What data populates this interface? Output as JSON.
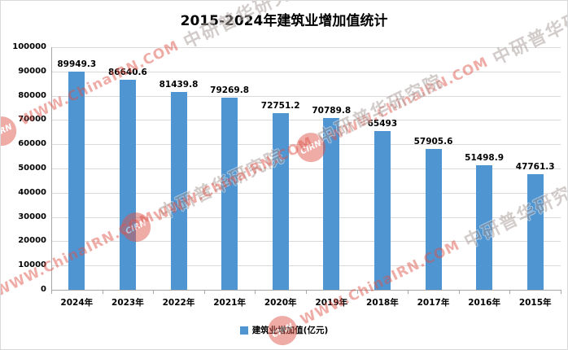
{
  "chart_data": {
    "type": "bar",
    "title": "2015-2024年建筑业增加值统计",
    "categories": [
      "2024年",
      "2023年",
      "2022年",
      "2021年",
      "2020年",
      "2019年",
      "2018年",
      "2017年",
      "2016年",
      "2015年"
    ],
    "values": [
      89949.3,
      86640.6,
      81439.8,
      79269.8,
      72751.2,
      70789.8,
      65493,
      57905.6,
      51498.9,
      47761.3
    ],
    "value_labels": [
      "89949.3",
      "86640.6",
      "81439.8",
      "79269.8",
      "72751.2",
      "70789.8",
      "65493",
      "57905.6",
      "51498.9",
      "47761.3"
    ],
    "ylim": [
      0,
      100000
    ],
    "ytick_step": 10000,
    "yticks": [
      "0",
      "10000",
      "20000",
      "30000",
      "40000",
      "50000",
      "60000",
      "70000",
      "80000",
      "90000",
      "100000"
    ],
    "grid": true,
    "legend": "建筑业增加值(亿元)",
    "legend_position": "bottom"
  },
  "colors": {
    "bar": "#4E95D2",
    "grid": "#D9D9D9",
    "axis": "#A6A6A6",
    "watermark_red": "#DF5449",
    "watermark_gray": "#A39693"
  },
  "watermark": {
    "logo_text": "CIRN",
    "url": "WWW.ChinaIRN.COM",
    "name": "中研普华研究院"
  }
}
